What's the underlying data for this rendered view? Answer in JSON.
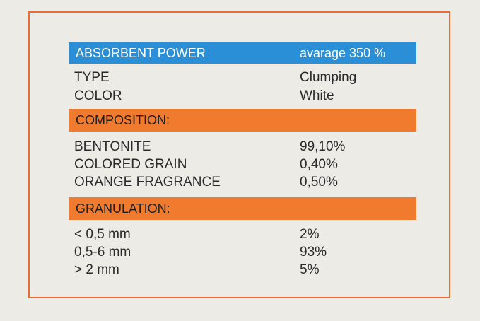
{
  "absorbent": {
    "label": "ABSORBENT POWER",
    "value": "avarage 350 %"
  },
  "properties": [
    {
      "label": "TYPE",
      "value": "Clumping"
    },
    {
      "label": "COLOR",
      "value": "White"
    }
  ],
  "composition": {
    "header": "COMPOSITION:",
    "items": [
      {
        "label": "BENTONITE",
        "value": "99,10%"
      },
      {
        "label": "COLORED GRAIN",
        "value": "0,40%"
      },
      {
        "label": "ORANGE FRAGRANCE",
        "value": "0,50%"
      }
    ]
  },
  "granulation": {
    "header": "GRANULATION:",
    "items": [
      {
        "label": "< 0,5 mm",
        "value": "2%"
      },
      {
        "label": "0,5-6 mm",
        "value": "93%"
      },
      {
        "label": "> 2 mm",
        "value": "5%"
      }
    ]
  },
  "colors": {
    "frame": "#ef6a33",
    "blue_band": "#2a8fd6",
    "orange_band": "#f07a2d",
    "background": "#ecebe6"
  }
}
